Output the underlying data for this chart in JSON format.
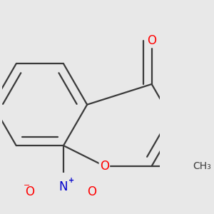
{
  "bg_color": "#e8e8e8",
  "bond_color": "#3a3a3a",
  "bond_width": 1.6,
  "dbo": 0.055,
  "atom_colors": {
    "O": "#ff0000",
    "N": "#0000cc",
    "C": "#3a3a3a"
  },
  "font_size_atom": 12,
  "font_size_methyl": 10,
  "font_size_charge": 7
}
